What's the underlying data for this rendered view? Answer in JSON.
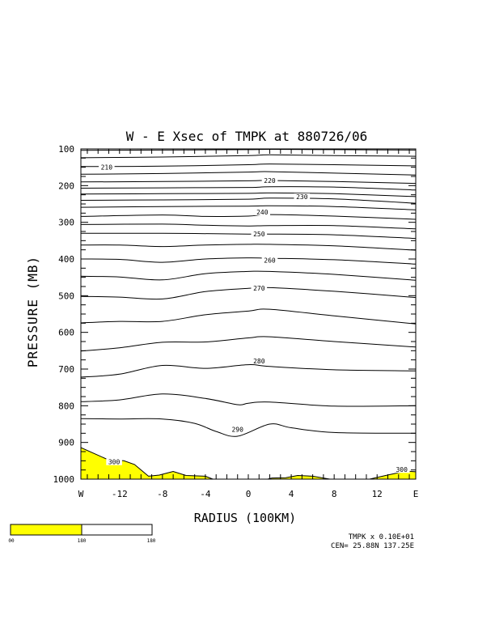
{
  "chart_data": {
    "type": "contour",
    "title": "W - E Xsec of TMPK at 880726/06",
    "xlabel": "RADIUS (100KM)",
    "ylabel": "PRESSURE (MB)",
    "xlim": [
      -15.6,
      15.6
    ],
    "ylim": [
      1000,
      100
    ],
    "x_tick_labels": [
      {
        "x": -15.6,
        "label": "W"
      },
      {
        "x": -12,
        "label": "-12"
      },
      {
        "x": -8,
        "label": "-8"
      },
      {
        "x": -4,
        "label": "-4"
      },
      {
        "x": 0,
        "label": "0"
      },
      {
        "x": 4,
        "label": "4"
      },
      {
        "x": 8,
        "label": "8"
      },
      {
        "x": 12,
        "label": "12"
      },
      {
        "x": 15.6,
        "label": "E"
      }
    ],
    "y_ticks": [
      100,
      200,
      300,
      400,
      500,
      600,
      700,
      800,
      900,
      1000
    ],
    "y_tick_labels": [
      "100",
      "200",
      "300",
      "400",
      "500",
      "600",
      "700",
      "800",
      "900",
      "1000"
    ],
    "contour_labels": [
      {
        "label": "210",
        "x": -13.2,
        "p": 150
      },
      {
        "label": "220",
        "x": 2.0,
        "p": 186
      },
      {
        "label": "230",
        "x": 5.0,
        "p": 230
      },
      {
        "label": "240",
        "x": 1.3,
        "p": 272
      },
      {
        "label": "250",
        "x": 1.0,
        "p": 332
      },
      {
        "label": "260",
        "x": 2.0,
        "p": 403
      },
      {
        "label": "270",
        "x": 1.0,
        "p": 479
      },
      {
        "label": "280",
        "x": 1.0,
        "p": 678
      },
      {
        "label": "290",
        "x": -1.0,
        "p": 864
      },
      {
        "label": "300",
        "x": -12.5,
        "p": 953
      },
      {
        "label": "300",
        "x": 14.3,
        "p": 974
      }
    ],
    "contours": [
      {
        "level": "c1",
        "points": [
          [
            -15.6,
            104
          ],
          [
            -8,
            103
          ],
          [
            0,
            102
          ],
          [
            2,
            101
          ],
          [
            8,
            102
          ],
          [
            15.6,
            103
          ]
        ]
      },
      {
        "level": "c2",
        "points": [
          [
            -15.6,
            124
          ],
          [
            -8,
            122
          ],
          [
            0,
            118
          ],
          [
            2,
            116
          ],
          [
            8,
            118
          ],
          [
            15.6,
            120
          ]
        ]
      },
      {
        "level": "210",
        "points": [
          [
            -15.6,
            148
          ],
          [
            -8,
            147
          ],
          [
            0,
            143
          ],
          [
            2,
            141
          ],
          [
            8,
            143
          ],
          [
            15.6,
            146
          ]
        ]
      },
      {
        "level": "c4",
        "points": [
          [
            -15.6,
            169
          ],
          [
            -8,
            167
          ],
          [
            0,
            163
          ],
          [
            2,
            162
          ],
          [
            8,
            166
          ],
          [
            15.6,
            171
          ]
        ]
      },
      {
        "level": "220",
        "points": [
          [
            -15.6,
            190
          ],
          [
            -8,
            189
          ],
          [
            0,
            187
          ],
          [
            2,
            186
          ],
          [
            8,
            189
          ],
          [
            15.6,
            194
          ]
        ]
      },
      {
        "level": "c6",
        "points": [
          [
            -15.6,
            207
          ],
          [
            -8,
            206
          ],
          [
            0,
            205
          ],
          [
            2,
            203
          ],
          [
            8,
            204
          ],
          [
            15.6,
            212
          ]
        ]
      },
      {
        "level": "c7",
        "points": [
          [
            -15.6,
            223
          ],
          [
            -8,
            222
          ],
          [
            0,
            221
          ],
          [
            2,
            220
          ],
          [
            8,
            222
          ],
          [
            15.6,
            230
          ]
        ]
      },
      {
        "level": "230",
        "points": [
          [
            -15.6,
            240
          ],
          [
            -8,
            239
          ],
          [
            0,
            237
          ],
          [
            2,
            234
          ],
          [
            8,
            236
          ],
          [
            15.6,
            248
          ]
        ]
      },
      {
        "level": "c9",
        "points": [
          [
            -15.6,
            259
          ],
          [
            -8,
            257
          ],
          [
            0,
            256
          ],
          [
            2,
            255
          ],
          [
            8,
            257
          ],
          [
            15.6,
            266
          ]
        ]
      },
      {
        "level": "240",
        "points": [
          [
            -15.6,
            284
          ],
          [
            -8,
            280
          ],
          [
            -4,
            284
          ],
          [
            0,
            283
          ],
          [
            2,
            279
          ],
          [
            8,
            283
          ],
          [
            15.6,
            292
          ]
        ]
      },
      {
        "level": "c11",
        "points": [
          [
            -15.6,
            306
          ],
          [
            -8,
            305
          ],
          [
            -4,
            308
          ],
          [
            0,
            310
          ],
          [
            2,
            309
          ],
          [
            8,
            309
          ],
          [
            15.6,
            318
          ]
        ]
      },
      {
        "level": "250",
        "points": [
          [
            -15.6,
            330
          ],
          [
            -8,
            330
          ],
          [
            0,
            332
          ],
          [
            2,
            332
          ],
          [
            8,
            334
          ],
          [
            15.6,
            344
          ]
        ]
      },
      {
        "level": "c13",
        "points": [
          [
            -15.6,
            362
          ],
          [
            -12,
            362
          ],
          [
            -8,
            366
          ],
          [
            -4,
            362
          ],
          [
            0,
            360
          ],
          [
            2,
            360
          ],
          [
            8,
            364
          ],
          [
            15.6,
            376
          ]
        ]
      },
      {
        "level": "260",
        "points": [
          [
            -15.6,
            400
          ],
          [
            -12,
            401
          ],
          [
            -8,
            409
          ],
          [
            -4,
            400
          ],
          [
            0,
            397
          ],
          [
            2,
            398
          ],
          [
            8,
            402
          ],
          [
            15.6,
            414
          ]
        ]
      },
      {
        "level": "c15",
        "points": [
          [
            -15.6,
            447
          ],
          [
            -12,
            449
          ],
          [
            -8,
            457
          ],
          [
            -4,
            440
          ],
          [
            0,
            434
          ],
          [
            2,
            434
          ],
          [
            8,
            442
          ],
          [
            15.6,
            458
          ]
        ]
      },
      {
        "level": "270",
        "points": [
          [
            -15.6,
            502
          ],
          [
            -12,
            504
          ],
          [
            -8,
            509
          ],
          [
            -4,
            489
          ],
          [
            0,
            480
          ],
          [
            2,
            478
          ],
          [
            8,
            488
          ],
          [
            15.6,
            505
          ]
        ]
      },
      {
        "level": "c17",
        "points": [
          [
            -15.6,
            574
          ],
          [
            -12,
            570
          ],
          [
            -8,
            570
          ],
          [
            -4,
            552
          ],
          [
            0,
            542
          ],
          [
            2,
            537
          ],
          [
            8,
            555
          ],
          [
            15.6,
            577
          ]
        ]
      },
      {
        "level": "280",
        "points": [
          [
            -15.6,
            651
          ],
          [
            -12,
            642
          ],
          [
            -8,
            627
          ],
          [
            -4,
            626
          ],
          [
            0,
            615
          ],
          [
            2,
            612
          ],
          [
            8,
            625
          ],
          [
            15.6,
            640
          ]
        ]
      },
      {
        "level": "c19",
        "points": [
          [
            -15.6,
            722
          ],
          [
            -12,
            714
          ],
          [
            -8,
            690
          ],
          [
            -4,
            698
          ],
          [
            0,
            688
          ],
          [
            2,
            693
          ],
          [
            8,
            702
          ],
          [
            15.6,
            705
          ]
        ]
      },
      {
        "level": "290",
        "points": [
          [
            -15.6,
            789
          ],
          [
            -12,
            784
          ],
          [
            -8,
            768
          ],
          [
            -4,
            780
          ],
          [
            -1,
            797
          ],
          [
            0,
            793
          ],
          [
            2,
            790
          ],
          [
            8,
            801
          ],
          [
            15.6,
            800
          ]
        ]
      },
      {
        "level": "c21",
        "points": [
          [
            -15.6,
            835
          ],
          [
            -12,
            836
          ],
          [
            -8,
            836
          ],
          [
            -5,
            848
          ],
          [
            -3,
            870
          ],
          [
            -1,
            883
          ],
          [
            2,
            850
          ],
          [
            4,
            860
          ],
          [
            8,
            873
          ],
          [
            15.6,
            875
          ]
        ]
      }
    ],
    "shaded_regions": [
      {
        "points": [
          [
            -15.6,
            1000
          ],
          [
            -15.6,
            914
          ],
          [
            -13,
            948
          ],
          [
            -11.6,
            950
          ],
          [
            -10.6,
            960
          ],
          [
            -9.3,
            992
          ],
          [
            -8.3,
            989
          ],
          [
            -7,
            979
          ],
          [
            -5.8,
            990
          ],
          [
            -4,
            992
          ],
          [
            -3.3,
            1000
          ]
        ]
      },
      {
        "points": [
          [
            1.8,
            1000
          ],
          [
            2.2,
            997
          ],
          [
            3.5,
            996
          ],
          [
            4.6,
            990
          ],
          [
            6,
            992
          ],
          [
            7.6,
            1000
          ]
        ]
      },
      {
        "points": [
          [
            11.3,
            1000
          ],
          [
            12.8,
            990
          ],
          [
            14.7,
            978
          ],
          [
            15.6,
            980
          ],
          [
            15.6,
            1000
          ]
        ]
      }
    ],
    "annotation_line1": "TMPK x  0.10E+01",
    "annotation_line2": "CEN= 25.88N  137.25E",
    "colorbar": {
      "colors": [
        "#ffff00",
        "#ffffff"
      ],
      "labels": [
        "00",
        "180",
        "180"
      ]
    }
  }
}
